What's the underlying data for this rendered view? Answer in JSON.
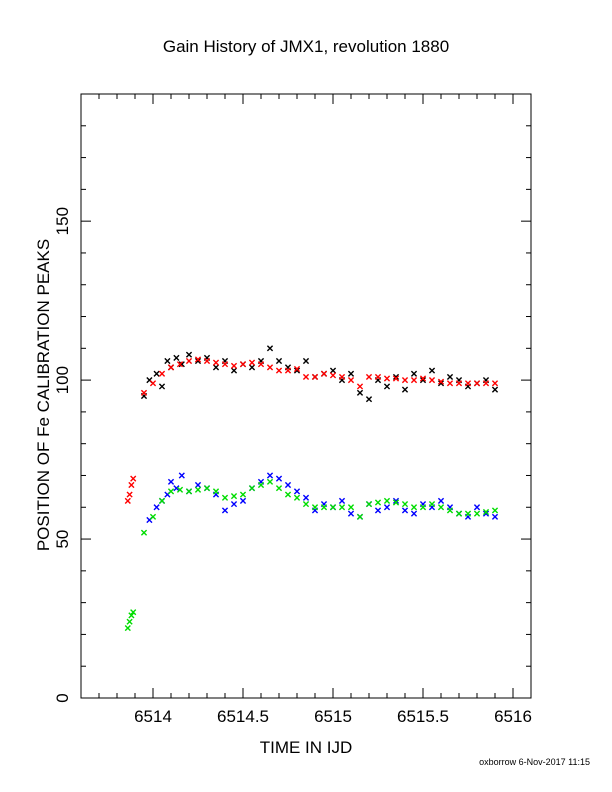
{
  "chart_data": {
    "type": "scatter",
    "title": "Gain History of JMX1, revolution 1880",
    "xlabel": "TIME IN IJD",
    "ylabel": "POSITION OF Fe CALIBRATION PEAKS",
    "xlim": [
      6513.6,
      6516.1
    ],
    "ylim": [
      0,
      190
    ],
    "x_ticks": [
      "6514",
      "6514.5",
      "6515",
      "6515.5",
      "6516"
    ],
    "x_tick_values": [
      6514,
      6514.5,
      6515,
      6515.5,
      6516
    ],
    "y_ticks": [
      "0",
      "50",
      "100",
      "150"
    ],
    "y_tick_values": [
      0,
      50,
      100,
      150
    ],
    "grid": false,
    "legend": "none",
    "series": [
      {
        "marker": "x",
        "color": "#000000",
        "x": [
          6513.95,
          6513.98,
          6514.02,
          6514.05,
          6514.08,
          6514.1,
          6514.13,
          6514.16,
          6514.2,
          6514.25,
          6514.3,
          6514.35,
          6514.4,
          6514.45,
          6514.5,
          6514.55,
          6514.6,
          6514.65,
          6514.7,
          6514.75,
          6514.8,
          6514.85,
          6514.9,
          6514.95,
          6515.0,
          6515.05,
          6515.1,
          6515.15,
          6515.2,
          6515.25,
          6515.3,
          6515.35,
          6515.4,
          6515.45,
          6515.5,
          6515.55,
          6515.6,
          6515.65,
          6515.7,
          6515.75,
          6515.8,
          6515.85,
          6515.9
        ],
        "y": [
          95,
          100,
          102,
          98,
          106,
          104,
          107,
          105,
          108,
          106,
          107,
          104,
          106,
          103,
          105,
          104,
          106,
          110,
          106,
          104,
          103,
          106,
          101,
          102,
          103,
          100,
          102,
          96,
          94,
          100,
          98,
          101,
          97,
          102,
          100,
          103,
          99,
          101,
          100,
          98,
          99,
          100,
          97
        ]
      },
      {
        "marker": "x",
        "color": "#ff0000",
        "x": [
          6513.86,
          6513.87,
          6513.88,
          6513.89,
          6513.95,
          6514.0,
          6514.05,
          6514.1,
          6514.15,
          6514.2,
          6514.25,
          6514.3,
          6514.35,
          6514.4,
          6514.45,
          6514.5,
          6514.55,
          6514.6,
          6514.65,
          6514.7,
          6514.75,
          6514.8,
          6514.85,
          6514.9,
          6514.95,
          6515.0,
          6515.05,
          6515.1,
          6515.15,
          6515.2,
          6515.25,
          6515.3,
          6515.35,
          6515.4,
          6515.45,
          6515.5,
          6515.55,
          6515.6,
          6515.65,
          6515.7,
          6515.75,
          6515.8,
          6515.85,
          6515.9
        ],
        "y": [
          62,
          64,
          67,
          69,
          96,
          99,
          102,
          104,
          105,
          106,
          106.5,
          106,
          105.5,
          105,
          104.5,
          105,
          105.5,
          105,
          104,
          103,
          103,
          103.5,
          101,
          101,
          102,
          101.5,
          101,
          100,
          98,
          101,
          101,
          100.5,
          100.5,
          100,
          100,
          100.5,
          100,
          99.5,
          99,
          99,
          99,
          99,
          99,
          99
        ]
      },
      {
        "marker": "x",
        "color": "#0000ff",
        "x": [
          6513.98,
          6514.02,
          6514.05,
          6514.08,
          6514.1,
          6514.13,
          6514.16,
          6514.2,
          6514.25,
          6514.3,
          6514.35,
          6514.4,
          6514.45,
          6514.5,
          6514.55,
          6514.6,
          6514.65,
          6514.7,
          6514.75,
          6514.8,
          6514.85,
          6514.9,
          6514.95,
          6515.0,
          6515.05,
          6515.1,
          6515.15,
          6515.2,
          6515.25,
          6515.3,
          6515.35,
          6515.4,
          6515.45,
          6515.5,
          6515.55,
          6515.6,
          6515.65,
          6515.7,
          6515.75,
          6515.8,
          6515.85,
          6515.9
        ],
        "y": [
          56,
          60,
          62,
          64,
          68,
          66,
          70,
          65,
          67,
          66,
          64,
          59,
          61,
          62,
          66,
          68,
          70,
          69,
          67,
          65,
          63,
          59,
          61,
          60,
          62,
          58,
          57,
          61,
          59,
          60,
          62,
          59,
          58,
          61,
          60,
          62,
          60,
          58,
          57,
          60,
          58,
          57
        ]
      },
      {
        "marker": "x",
        "color": "#00dd00",
        "x": [
          6513.86,
          6513.87,
          6513.88,
          6513.89,
          6513.95,
          6514.0,
          6514.05,
          6514.1,
          6514.15,
          6514.2,
          6514.25,
          6514.3,
          6514.35,
          6514.4,
          6514.45,
          6514.5,
          6514.55,
          6514.6,
          6514.65,
          6514.7,
          6514.75,
          6514.8,
          6514.85,
          6514.9,
          6514.95,
          6515.0,
          6515.05,
          6515.1,
          6515.15,
          6515.2,
          6515.25,
          6515.3,
          6515.35,
          6515.4,
          6515.45,
          6515.5,
          6515.55,
          6515.6,
          6515.65,
          6515.7,
          6515.75,
          6515.8,
          6515.85,
          6515.9
        ],
        "y": [
          22,
          24,
          26,
          27,
          52,
          57,
          62,
          65,
          65.5,
          65,
          65.5,
          66,
          65,
          63,
          63.5,
          64,
          66,
          67,
          68,
          66,
          64,
          63,
          61,
          60,
          60,
          60,
          60,
          60,
          57,
          61,
          61.5,
          62,
          61.5,
          61,
          60,
          60,
          61,
          60,
          59,
          58,
          58,
          58,
          58.5,
          59
        ]
      }
    ]
  },
  "footer": {
    "text": "oxborrow  6-Nov-2017 11:15"
  }
}
